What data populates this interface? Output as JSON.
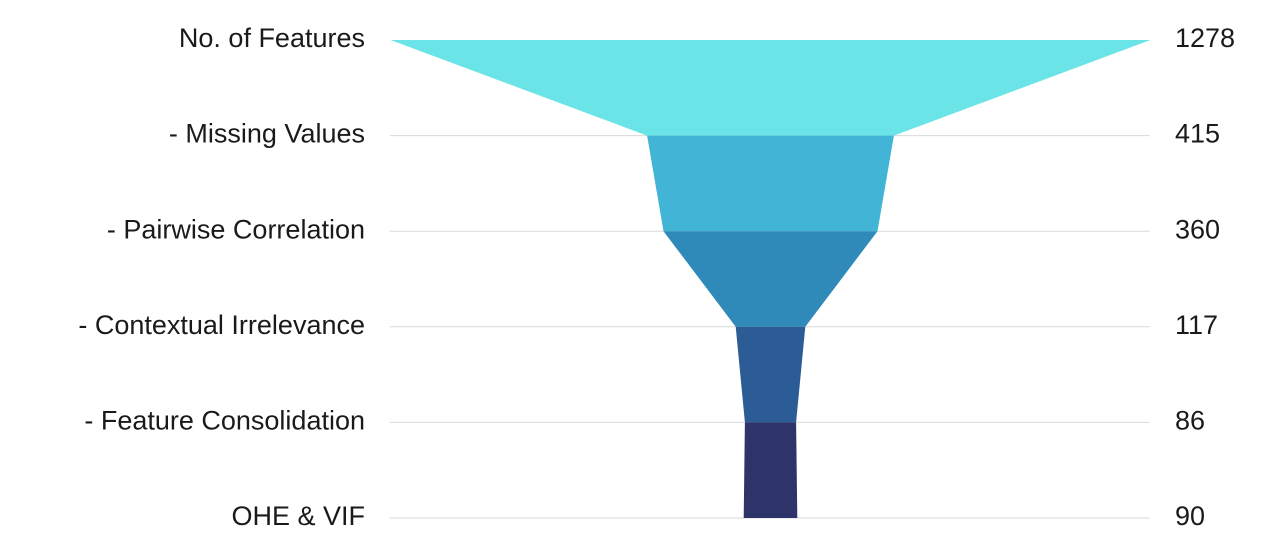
{
  "chart_data": {
    "type": "funnel",
    "title": "",
    "categories": [
      "No. of Features",
      "- Missing Values",
      "- Pairwise Correlation",
      "- Contextual Irrelevance",
      "- Feature Consolidation",
      "OHE & VIF"
    ],
    "values": [
      1278,
      415,
      360,
      117,
      86,
      90
    ],
    "colors": [
      "#6ae4e6",
      "#42b5d6",
      "#2f8ab9",
      "#2c5c95",
      "#2e336a"
    ],
    "gridlines": true,
    "legend": "none"
  }
}
